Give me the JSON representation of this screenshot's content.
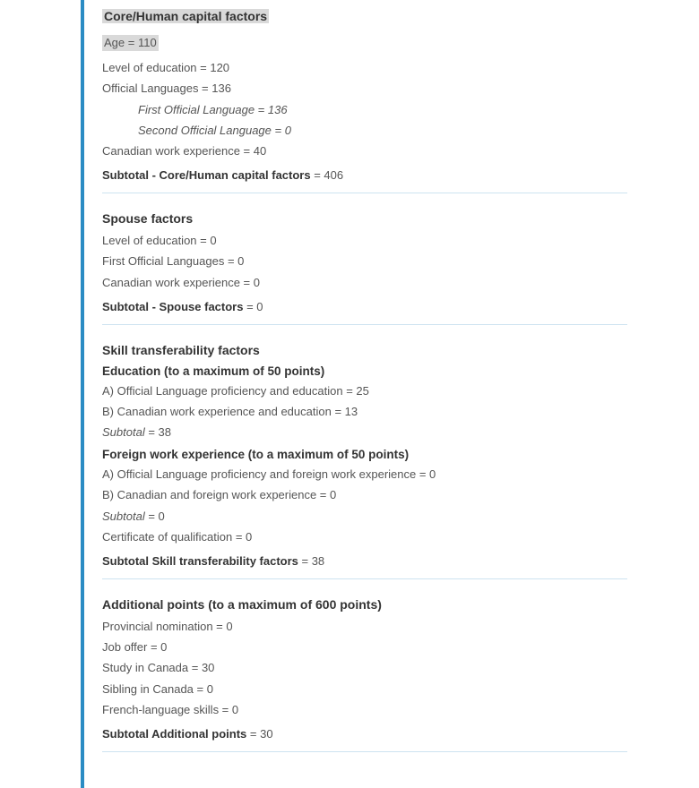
{
  "core": {
    "title": "Core/Human capital factors",
    "age": "Age = 110",
    "education": "Level of education = 120",
    "official_languages": "Official Languages = 136",
    "first_lang": "First Official Language = 136",
    "second_lang": "Second Official Language = 0",
    "work_exp": "Canadian work experience = 40",
    "subtotal_label": "Subtotal - Core/Human capital factors",
    "subtotal_value": " = 406"
  },
  "spouse": {
    "title": "Spouse factors",
    "education": "Level of education = 0",
    "first_lang": "First Official Languages = 0",
    "work_exp": "Canadian work experience = 0",
    "subtotal_label": "Subtotal - Spouse factors",
    "subtotal_value": " = 0"
  },
  "skill": {
    "title": "Skill transferability factors",
    "edu_head": "Education (to a maximum of 50 points)",
    "edu_a": "A) Official Language proficiency and education = 25",
    "edu_b": "B) Canadian work experience and education = 13",
    "edu_sub_label": "Subtotal",
    "edu_sub_value": " = 38",
    "fwe_head": "Foreign work experience (to a maximum of 50 points)",
    "fwe_a": "A) Official Language proficiency and foreign work experience = 0",
    "fwe_b": "B) Canadian and foreign work experience = 0",
    "fwe_sub_label": "Subtotal",
    "fwe_sub_value": " = 0",
    "cert": "Certificate of qualification = 0",
    "subtotal_label": "Subtotal Skill transferability factors",
    "subtotal_value": " = 38"
  },
  "additional": {
    "title": "Additional points (to a maximum of 600 points)",
    "provincial": "Provincial nomination = 0",
    "job_offer": "Job offer = 0",
    "study": "Study in Canada = 30",
    "sibling": "Sibling in Canada = 0",
    "french": "French-language skills = 0",
    "subtotal_label": "Subtotal Additional points",
    "subtotal_value": " = 30"
  }
}
